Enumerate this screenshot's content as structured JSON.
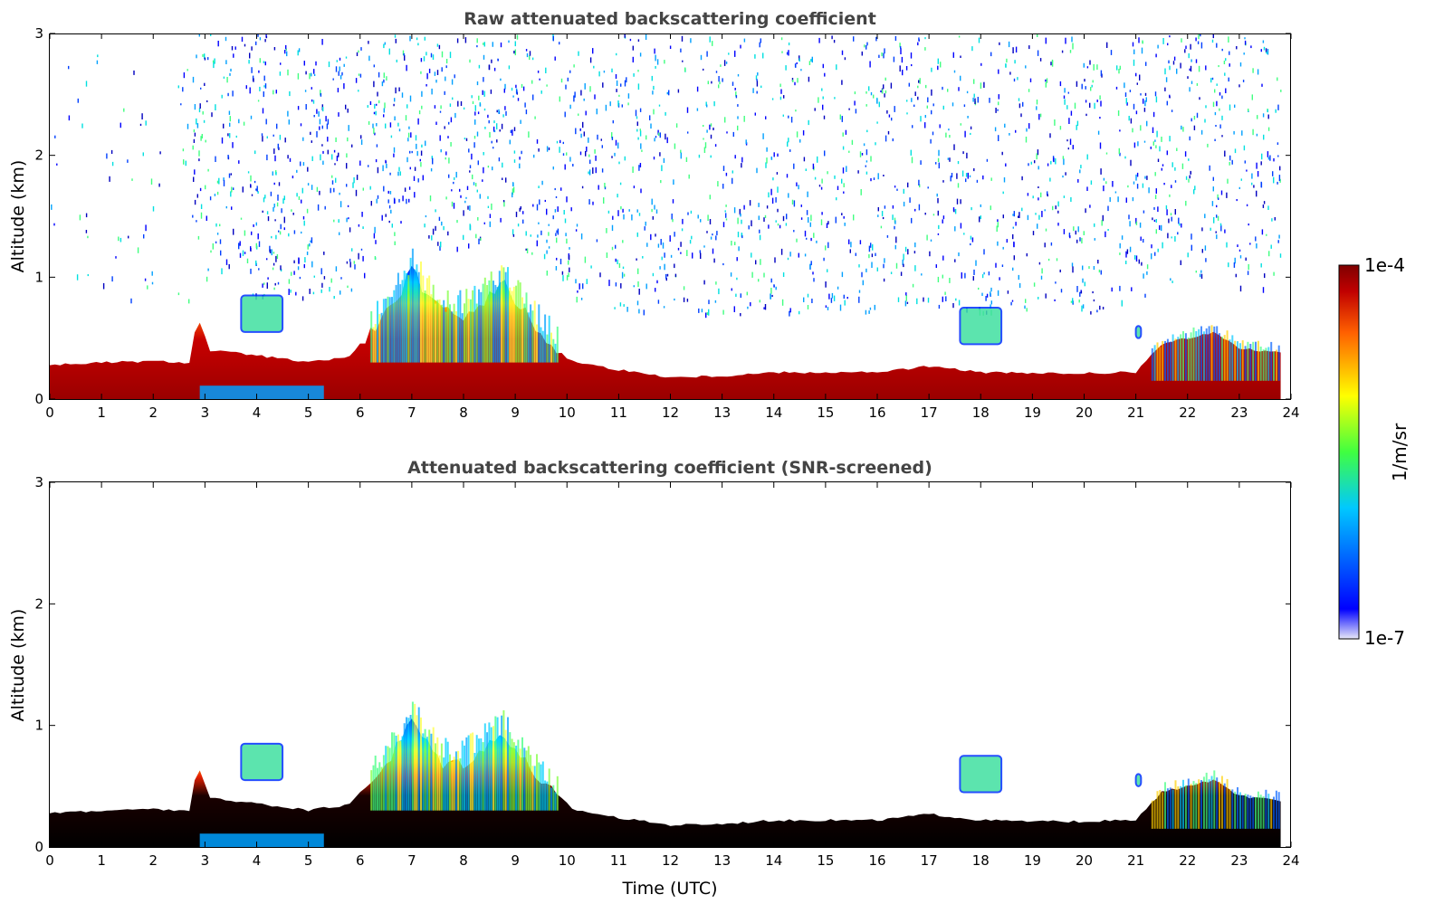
{
  "chart_data": [
    {
      "type": "heatmap",
      "title": "Raw attenuated backscattering coefficient",
      "xlabel": "",
      "ylabel": "Altitude (km)",
      "xlim": [
        0,
        24
      ],
      "ylim": [
        0,
        3
      ],
      "xticks": [
        "0",
        "1",
        "2",
        "3",
        "4",
        "5",
        "6",
        "7",
        "8",
        "9",
        "10",
        "11",
        "12",
        "13",
        "14",
        "15",
        "16",
        "17",
        "18",
        "19",
        "20",
        "21",
        "22",
        "23",
        "24"
      ],
      "yticks": [
        "0",
        "1",
        "2",
        "3"
      ],
      "screened": false,
      "boundary_layer_top_km": [
        [
          0,
          0.28
        ],
        [
          1,
          0.3
        ],
        [
          2,
          0.31
        ],
        [
          2.7,
          0.3
        ],
        [
          2.85,
          0.68
        ],
        [
          3.1,
          0.4
        ],
        [
          4,
          0.36
        ],
        [
          5,
          0.3
        ],
        [
          5.8,
          0.35
        ],
        [
          6.2,
          0.55
        ],
        [
          6.6,
          0.75
        ],
        [
          7,
          1.05
        ],
        [
          7.3,
          0.85
        ],
        [
          7.6,
          0.7
        ],
        [
          8,
          0.7
        ],
        [
          8.5,
          0.85
        ],
        [
          8.8,
          0.95
        ],
        [
          9.1,
          0.75
        ],
        [
          9.5,
          0.55
        ],
        [
          10,
          0.32
        ],
        [
          11,
          0.24
        ],
        [
          12,
          0.18
        ],
        [
          13,
          0.19
        ],
        [
          14,
          0.22
        ],
        [
          15,
          0.22
        ],
        [
          16,
          0.22
        ],
        [
          17,
          0.27
        ],
        [
          18,
          0.22
        ],
        [
          19,
          0.21
        ],
        [
          20,
          0.21
        ],
        [
          21,
          0.22
        ],
        [
          21.5,
          0.45
        ],
        [
          22,
          0.5
        ],
        [
          22.5,
          0.55
        ],
        [
          23,
          0.42
        ],
        [
          23.8,
          0.38
        ]
      ],
      "elevated_layers": [
        {
          "x0": 3.7,
          "x1": 4.5,
          "y0": 0.55,
          "y1": 0.85
        },
        {
          "x0": 17.6,
          "x1": 18.4,
          "y0": 0.45,
          "y1": 0.75
        },
        {
          "x0": 21.0,
          "x1": 21.1,
          "y0": 0.5,
          "y1": 0.6
        }
      ],
      "data_end_hour": 23.8
    },
    {
      "type": "heatmap",
      "title": "Attenuated backscattering coefficient (SNR-screened)",
      "xlabel": "Time (UTC)",
      "ylabel": "Altitude (km)",
      "xlim": [
        0,
        24
      ],
      "ylim": [
        0,
        3
      ],
      "xticks": [
        "0",
        "1",
        "2",
        "3",
        "4",
        "5",
        "6",
        "7",
        "8",
        "9",
        "10",
        "11",
        "12",
        "13",
        "14",
        "15",
        "16",
        "17",
        "18",
        "19",
        "20",
        "21",
        "22",
        "23",
        "24"
      ],
      "yticks": [
        "0",
        "1",
        "2",
        "3"
      ],
      "screened": true,
      "data_end_hour": 23.8
    }
  ],
  "colorbar": {
    "label": "1/m/sr",
    "min_label": "1e-7",
    "max_label": "1e-4",
    "colormap": "jet",
    "colors": [
      "#e8e8f8",
      "#0000ff",
      "#00c8ff",
      "#40ff40",
      "#ffff00",
      "#ff6000",
      "#c00000",
      "#7f0000"
    ],
    "extend_high_color": "#000000"
  }
}
